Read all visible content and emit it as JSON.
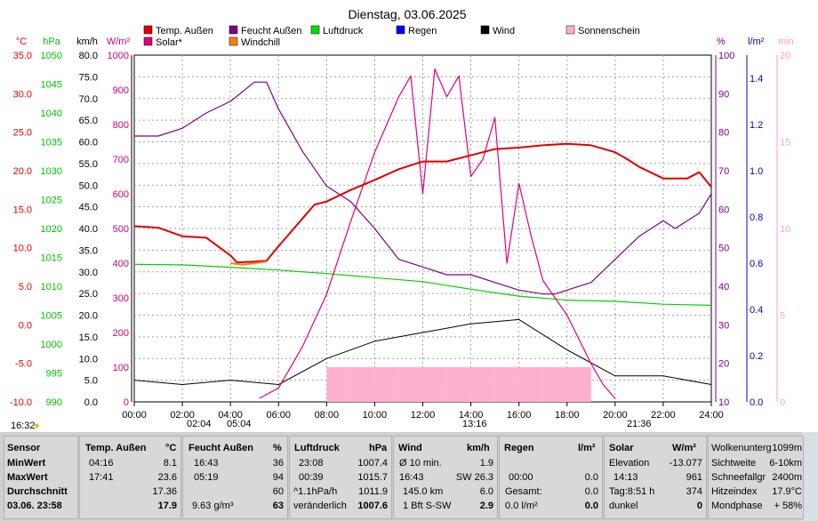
{
  "chart_data": {
    "type": "line",
    "title": "Dienstag, 03.06.2025",
    "x_ticks": [
      "00:00",
      "02:00",
      "04:00",
      "06:00",
      "08:00",
      "10:00",
      "12:00",
      "14:00",
      "16:00",
      "18:00",
      "20:00",
      "22:00",
      "24:00"
    ],
    "xlim": [
      0,
      24
    ],
    "grid": true,
    "legend_position": "top",
    "left_axes": [
      {
        "unit": "°C",
        "range": [
          -10,
          35
        ],
        "ticks": [
          "35.0",
          "30.0",
          "25.0",
          "20.0",
          "15.0",
          "10.0",
          "5.0",
          "0.0",
          "-5.0",
          "-10.0"
        ],
        "color": "#e00000"
      },
      {
        "unit": "hPa",
        "range": [
          990,
          1050
        ],
        "ticks": [
          "1050",
          "1045",
          "1040",
          "1035",
          "1030",
          "1025",
          "1020",
          "1015",
          "1010",
          "1005",
          "1000",
          "995",
          "990"
        ],
        "color": "#00c000"
      },
      {
        "unit": "km/h",
        "range": [
          0,
          80
        ],
        "ticks": [
          "80.0",
          "75.0",
          "70.0",
          "65.0",
          "60.0",
          "55.0",
          "50.0",
          "45.0",
          "40.0",
          "35.0",
          "30.0",
          "25.0",
          "20.0",
          "15.0",
          "10.0",
          "5.0",
          "0.0"
        ],
        "color": "#000000"
      },
      {
        "unit": "W/m²",
        "range": [
          0,
          1000
        ],
        "ticks": [
          "1000",
          "900",
          "800",
          "700",
          "600",
          "500",
          "400",
          "300",
          "200",
          "100",
          "0"
        ],
        "color": "#d00070"
      }
    ],
    "right_axes": [
      {
        "unit": "%",
        "range": [
          10,
          100
        ],
        "ticks": [
          "100",
          "90",
          "80",
          "70",
          "60",
          "50",
          "40",
          "30",
          "20",
          "10"
        ],
        "color": "#800080"
      },
      {
        "unit": "l/m²",
        "range": [
          0,
          1.5
        ],
        "ticks": [
          "1.4",
          "1.2",
          "1.0",
          "0.8",
          "0.6",
          "0.4",
          "0.2",
          "0.0"
        ],
        "color": "#0000c0"
      },
      {
        "unit": "min",
        "range": [
          0,
          20
        ],
        "ticks": [
          "20",
          "15",
          "10",
          "5",
          "0"
        ],
        "color": "#ff9cc8"
      }
    ],
    "legend": [
      {
        "name": "Temp. Außen",
        "color": "#e00000"
      },
      {
        "name": "Feucht Außen",
        "color": "#800080"
      },
      {
        "name": "Luftdruck",
        "color": "#00e000"
      },
      {
        "name": "Regen",
        "color": "#0000ff"
      },
      {
        "name": "Wind",
        "color": "#000000"
      },
      {
        "name": "Sonnenschein",
        "color": "#ffb0d0"
      },
      {
        "name": "Solar*",
        "color": "#e0007a"
      },
      {
        "name": "Windchill",
        "color": "#ff8000"
      }
    ],
    "series": [
      {
        "name": "Temp. Außen",
        "axis": "°C",
        "x": [
          0,
          1,
          2,
          3,
          4,
          4.27,
          5,
          5.5,
          6,
          7,
          7.5,
          8,
          9,
          10,
          11,
          12,
          13,
          14,
          15,
          16,
          17,
          18,
          19,
          20,
          20.5,
          21,
          22,
          23,
          23.5,
          24
        ],
        "y": [
          12.8,
          12.6,
          11.5,
          11.3,
          9.0,
          8.1,
          8.2,
          8.3,
          10.2,
          13.8,
          15.6,
          16.0,
          17.5,
          18.8,
          20.2,
          21.2,
          21.2,
          22.0,
          22.8,
          23.0,
          23.3,
          23.5,
          23.3,
          22.4,
          21.5,
          20.5,
          19.0,
          19.0,
          19.8,
          17.9
        ]
      },
      {
        "name": "Windchill",
        "axis": "°C",
        "x": [
          4,
          4.5,
          5,
          5.5
        ],
        "y": [
          8.0,
          7.8,
          8.0,
          8.2
        ]
      },
      {
        "name": "Feucht Außen",
        "axis": "%",
        "x": [
          0,
          1,
          2,
          3,
          4,
          5,
          5.5,
          6,
          7,
          8,
          9,
          10,
          11,
          12,
          13,
          14,
          15,
          16,
          17,
          17.5,
          18,
          19,
          20,
          21,
          22,
          22.5,
          23,
          23.5,
          24
        ],
        "y": [
          79,
          79,
          81,
          85,
          88,
          93,
          93,
          86,
          75,
          66,
          62,
          55,
          47,
          45,
          43,
          43,
          41,
          39,
          38,
          38,
          39,
          41,
          47,
          53,
          57,
          55,
          57,
          59,
          64
        ]
      },
      {
        "name": "Luftdruck",
        "axis": "hPa",
        "x": [
          0,
          2,
          4,
          6,
          8,
          10,
          12,
          14,
          16,
          18,
          20,
          22,
          24
        ],
        "y": [
          1013.8,
          1013.7,
          1013.3,
          1012.8,
          1012.2,
          1011.5,
          1010.8,
          1009.5,
          1008.3,
          1007.6,
          1007.4,
          1006.9,
          1006.7
        ]
      },
      {
        "name": "Solar*",
        "axis": "W/m²",
        "x": [
          5.2,
          6,
          7,
          8,
          9,
          10,
          11,
          11.5,
          12,
          12.5,
          13,
          13.5,
          14,
          14.5,
          15,
          15.5,
          16,
          16.5,
          17,
          18,
          19,
          19.5,
          20
        ],
        "y": [
          10,
          40,
          160,
          310,
          520,
          720,
          880,
          940,
          600,
          960,
          880,
          940,
          650,
          700,
          820,
          400,
          630,
          480,
          350,
          250,
          110,
          50,
          10
        ]
      },
      {
        "name": "Wind",
        "axis": "km/h",
        "x": [
          0,
          2,
          4,
          6,
          8,
          10,
          12,
          14,
          16,
          18,
          20,
          22,
          24
        ],
        "y": [
          5,
          4,
          5,
          4,
          10,
          14,
          16,
          18,
          19,
          12,
          6,
          6,
          4
        ]
      },
      {
        "name": "Sonnenschein",
        "axis": "min",
        "x": [
          8,
          9,
          10,
          11,
          12,
          13,
          14,
          15,
          16,
          17,
          18,
          19
        ],
        "y": [
          2,
          2,
          2,
          2,
          2,
          2,
          2,
          2,
          2,
          2,
          2,
          0
        ]
      }
    ],
    "annotations": [
      "02:04",
      "05:04",
      "13:16",
      "21:36",
      "16:32"
    ]
  },
  "summary": {
    "sensor": {
      "header": "Sensor",
      "min": "MinWert",
      "max": "MaxWert",
      "avg": "Durchschnitt",
      "date": "03.06. 23:58"
    },
    "temp": {
      "header": "Temp. Außen",
      "unit": "°C",
      "min_time": "04:16",
      "min": "8.1",
      "max_time": "17:41",
      "max": "23.6",
      "avg": "17.36",
      "cur": "17.9"
    },
    "feucht": {
      "header": "Feucht Außen",
      "unit": "%",
      "min_time": "16:43",
      "min": "36",
      "max_time": "05:19",
      "max": "94",
      "avg": "60",
      "abs": "9.63 g/m³",
      "cur": "63"
    },
    "druck": {
      "header": "Luftdruck",
      "unit": "hPa",
      "min_time": "23:08",
      "min": "1007.4",
      "max_time": "00:39",
      "max": "1015.7",
      "trend": "^1.1hPa/h",
      "avg": "1011.9",
      "state": "veränderlich",
      "cur": "1007.6"
    },
    "wind": {
      "header": "Wind",
      "unit": "km/h",
      "l1a": "Ø 10 min.",
      "l1b": "1.9",
      "l2a": "16:43",
      "l2b": "SW 26.3",
      "l3a": "145.0 km",
      "l3b": "6.0",
      "l4a": "1 Bft S-SW",
      "l4b": "2.9"
    },
    "regen": {
      "header": "Regen",
      "unit": "l/m²",
      "l2a": "00:00",
      "l2b": "0.0",
      "l3a": "Gesamt:",
      "l3b": "0.0",
      "l4a": "0.0 l/m²",
      "l4b": "0.0"
    },
    "solar": {
      "header": "Solar",
      "unit": "W/m²",
      "l1a": "Elevation",
      "l1b": "-13.077",
      "l2a": "14:13",
      "l2b": "961",
      "l3a": "Tag:8:51 h",
      "l3b": "374",
      "l4a": "dunkel",
      "l4b": "0"
    },
    "extra": {
      "l0a": "Wolkenunterg",
      "l0b": "1099m",
      "l1a": "Sichtweite",
      "l1b": "6-10km",
      "l2a": "Schneefallgr",
      "l2b": "2400m",
      "l3a": "Hitzeindex",
      "l3b": "17.9°C",
      "l4a": "Mondphase",
      "l4b": "+ 58%"
    }
  }
}
